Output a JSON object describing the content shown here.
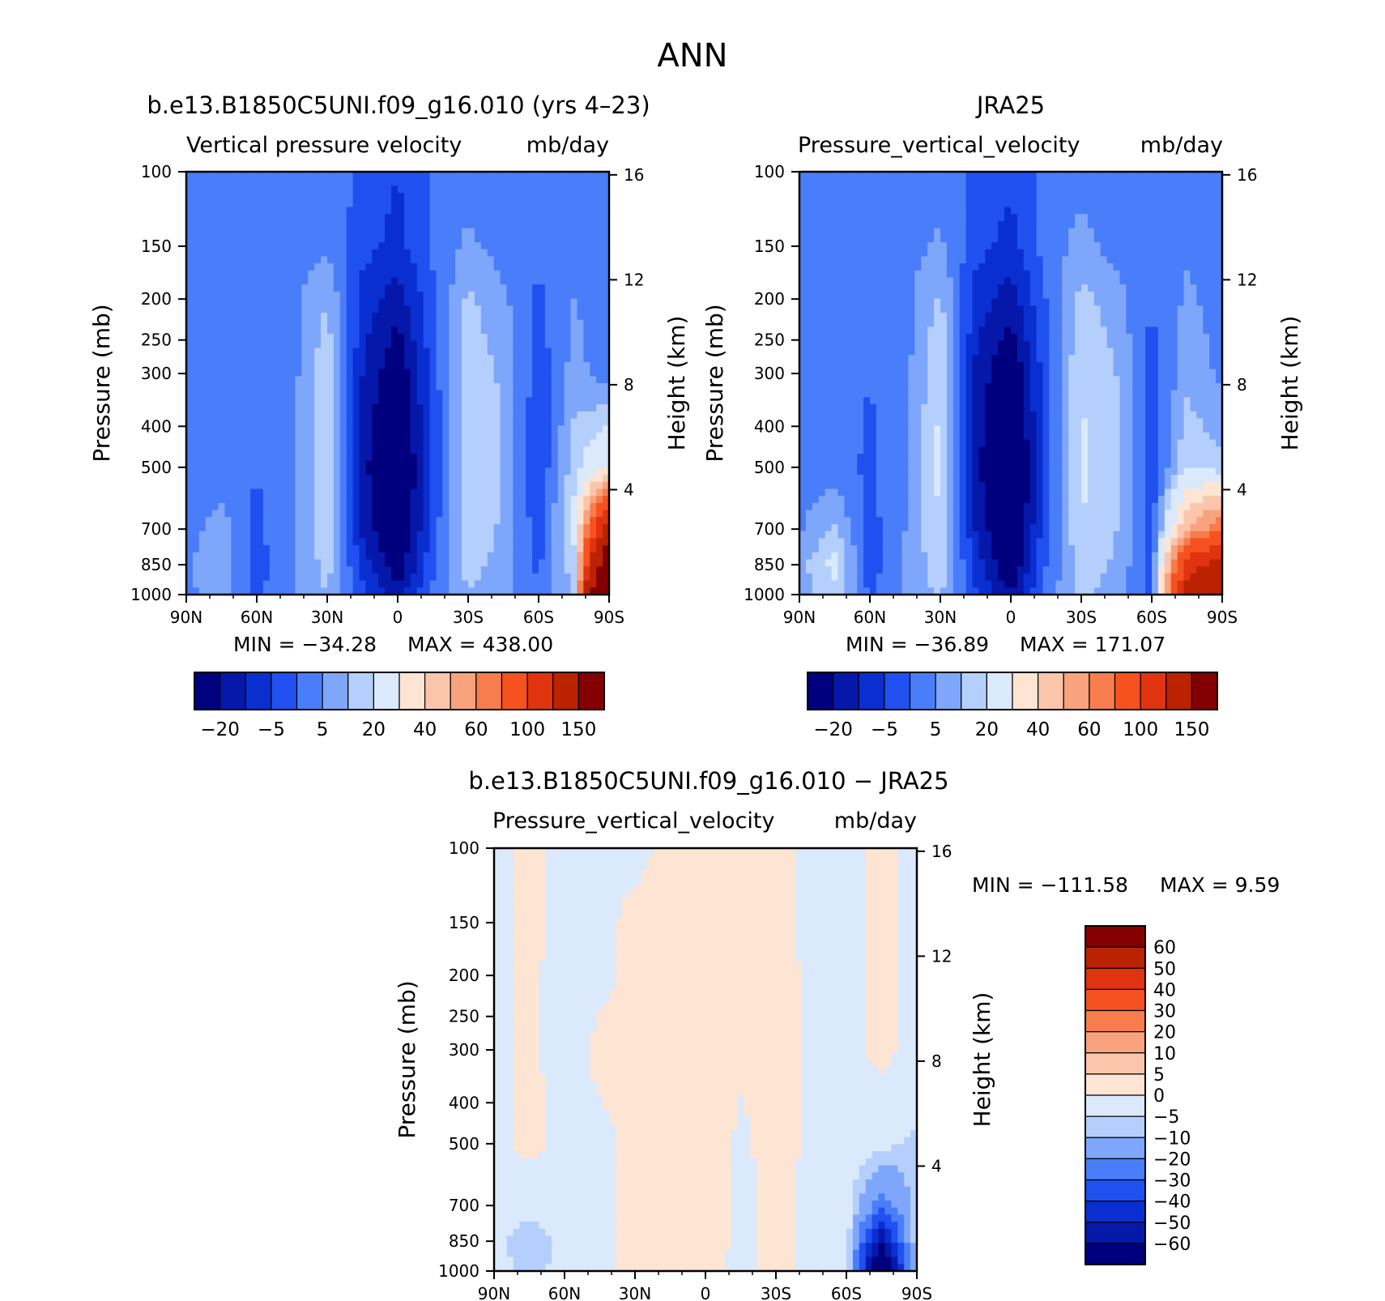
{
  "page_title": "ANN",
  "colors": {
    "blues": [
      "#00007f",
      "#0518aa",
      "#0a2fd0",
      "#2050f0",
      "#4a7dfa",
      "#7ea6fb",
      "#b5cffc",
      "#dbe9fd"
    ],
    "reds": [
      "#fde4d3",
      "#fbc5ac",
      "#f9a37e",
      "#f77d4e",
      "#f55220",
      "#e03310",
      "#bb2200",
      "#840000"
    ]
  },
  "chart_data": [
    {
      "type": "heatmap",
      "title": "b.e13.B1850C5UNI.f09_g16.010 (yrs 4–23)",
      "subtitle_left": "Vertical pressure velocity",
      "subtitle_right": "mb/day",
      "xlabel": "",
      "ylabel": "Pressure (mb)",
      "ylabel_right": "Height (km)",
      "xticks": [
        "90N",
        "60N",
        "30N",
        "0",
        "30S",
        "60S",
        "90S"
      ],
      "yticks": [
        "100",
        "150",
        "200",
        "250",
        "300",
        "400",
        "500",
        "700",
        "850",
        "1000"
      ],
      "yticks_right": [
        "16",
        "12",
        "8",
        "4"
      ],
      "xlim": [
        90,
        -90
      ],
      "ylim": [
        1000,
        100
      ],
      "y_scale": "log",
      "min_label": "MIN = −34.28",
      "max_label": "MAX = 438.00",
      "min": -34.28,
      "max": 438.0,
      "colorbar_labels": [
        "−20",
        "−5",
        "5",
        "20",
        "40",
        "60",
        "100",
        "150"
      ],
      "latitudes": [
        90,
        75,
        60,
        45,
        30,
        15,
        0,
        -15,
        -30,
        -45,
        -60,
        -75,
        -90
      ],
      "pressures": [
        100,
        150,
        200,
        300,
        500,
        700,
        850,
        1000
      ],
      "values": [
        [
          -3,
          -3,
          -3,
          -2,
          -2,
          -6,
          -10,
          -4,
          -2,
          -3,
          -3,
          -2,
          -2
        ],
        [
          -3,
          -2,
          -2,
          -2,
          -1,
          -8,
          -12,
          -4,
          1,
          -2,
          -4,
          -1,
          -2
        ],
        [
          -2,
          -2,
          -3,
          -2,
          5,
          -12,
          -18,
          -6,
          6,
          1,
          -6,
          0,
          -2
        ],
        [
          -2,
          -2,
          -4,
          -2,
          9,
          -15,
          -25,
          -8,
          9,
          4,
          -8,
          2,
          -3
        ],
        [
          -2,
          -3,
          -5,
          -2,
          10,
          -18,
          -30,
          -9,
          10,
          5,
          -10,
          8,
          20
        ],
        [
          -2,
          2,
          -6,
          -1,
          9,
          -16,
          -28,
          -8,
          9,
          4,
          -8,
          12,
          120
        ],
        [
          -1,
          4,
          -7,
          -1,
          7,
          -12,
          -24,
          -6,
          7,
          3,
          -6,
          8,
          200
        ],
        [
          -1,
          2,
          -6,
          -1,
          5,
          -8,
          -18,
          -4,
          5,
          2,
          -5,
          6,
          300
        ]
      ]
    },
    {
      "type": "heatmap",
      "title": "JRA25",
      "subtitle_left": "Pressure_vertical_velocity",
      "subtitle_right": "mb/day",
      "xlabel": "",
      "ylabel": "Pressure (mb)",
      "ylabel_right": "Height (km)",
      "xticks": [
        "90N",
        "60N",
        "30N",
        "0",
        "30S",
        "60S",
        "90S"
      ],
      "yticks": [
        "100",
        "150",
        "200",
        "250",
        "300",
        "400",
        "500",
        "700",
        "850",
        "1000"
      ],
      "yticks_right": [
        "16",
        "12",
        "8",
        "4"
      ],
      "xlim": [
        90,
        -90
      ],
      "ylim": [
        1000,
        100
      ],
      "y_scale": "log",
      "min_label": "MIN = −36.89",
      "max_label": "MAX = 171.07",
      "min": -36.89,
      "max": 171.07,
      "colorbar_labels": [
        "−20",
        "−5",
        "5",
        "20",
        "40",
        "60",
        "100",
        "150"
      ],
      "latitudes": [
        90,
        75,
        60,
        45,
        30,
        15,
        0,
        -15,
        -30,
        -45,
        -60,
        -75,
        -90
      ],
      "pressures": [
        100,
        150,
        200,
        300,
        500,
        700,
        850,
        1000
      ],
      "values": [
        [
          -3,
          -3,
          -3,
          -2,
          -2,
          -6,
          -9,
          -3,
          -2,
          -3,
          -3,
          -2,
          -2
        ],
        [
          -3,
          -2,
          -2,
          -2,
          1,
          -8,
          -12,
          -3,
          2,
          -2,
          -3,
          -1,
          -2
        ],
        [
          -2,
          -2,
          -3,
          -2,
          6,
          -12,
          -18,
          -5,
          7,
          2,
          -5,
          1,
          -2
        ],
        [
          -2,
          -2,
          -5,
          -2,
          10,
          -16,
          -26,
          -7,
          10,
          5,
          -7,
          3,
          -1
        ],
        [
          -2,
          -3,
          -6,
          -1,
          12,
          -18,
          -32,
          -8,
          11,
          6,
          -9,
          10,
          6
        ],
        [
          -1,
          6,
          -7,
          0,
          10,
          -15,
          -30,
          -6,
          10,
          5,
          -8,
          40,
          60
        ],
        [
          3,
          12,
          -8,
          1,
          8,
          -12,
          -26,
          -5,
          8,
          4,
          -7,
          90,
          110
        ],
        [
          2,
          8,
          -6,
          1,
          6,
          -9,
          -20,
          -3,
          6,
          3,
          -6,
          110,
          150
        ]
      ]
    },
    {
      "type": "heatmap",
      "title": "b.e13.B1850C5UNI.f09_g16.010 − JRA25",
      "subtitle_left": "Pressure_vertical_velocity",
      "subtitle_right": "mb/day",
      "xlabel": "",
      "ylabel": "Pressure (mb)",
      "ylabel_right": "Height (km)",
      "xticks": [
        "90N",
        "60N",
        "30N",
        "0",
        "30S",
        "60S",
        "90S"
      ],
      "yticks": [
        "100",
        "150",
        "200",
        "250",
        "300",
        "400",
        "500",
        "700",
        "850",
        "1000"
      ],
      "yticks_right": [
        "16",
        "12",
        "8",
        "4"
      ],
      "xlim": [
        90,
        -90
      ],
      "ylim": [
        1000,
        100
      ],
      "y_scale": "log",
      "min_label": "MIN = −111.58",
      "max_label": "MAX =    9.59",
      "min": -111.58,
      "max": 9.59,
      "colorbar_labels": [
        "60",
        "50",
        "40",
        "30",
        "20",
        "10",
        "5",
        "0",
        "−5",
        "−10",
        "−20",
        "−30",
        "−40",
        "−50",
        "−60"
      ],
      "latitudes": [
        90,
        75,
        60,
        45,
        30,
        15,
        0,
        -15,
        -30,
        -45,
        -60,
        -75,
        -90
      ],
      "pressures": [
        100,
        150,
        200,
        300,
        500,
        700,
        850,
        1000
      ],
      "values": [
        [
          -1,
          1,
          -1,
          -1,
          -1,
          1,
          0,
          2,
          1,
          -1,
          -1,
          1,
          -1
        ],
        [
          -1,
          1,
          -1,
          -1,
          1,
          1,
          0,
          2,
          1,
          -1,
          -1,
          1,
          -1
        ],
        [
          -1,
          1,
          -2,
          -1,
          1,
          2,
          2,
          1,
          2,
          -1,
          -1,
          1,
          -1
        ],
        [
          -1,
          1,
          -2,
          1,
          1,
          2,
          3,
          1,
          2,
          -1,
          -1,
          1,
          -1
        ],
        [
          -1,
          1,
          -1,
          -1,
          1,
          2,
          3,
          -1,
          2,
          -1,
          -1,
          -3,
          -6
        ],
        [
          -1,
          -3,
          -2,
          -1,
          1,
          1,
          2,
          -1,
          1,
          -1,
          -1,
          -25,
          -8
        ],
        [
          -4,
          -8,
          -3,
          -2,
          2,
          1,
          2,
          -1,
          1,
          -1,
          -1,
          -60,
          -5
        ],
        [
          -3,
          -6,
          -4,
          -2,
          3,
          1,
          1,
          -1,
          1,
          -1,
          -1,
          -90,
          -3
        ]
      ]
    }
  ]
}
